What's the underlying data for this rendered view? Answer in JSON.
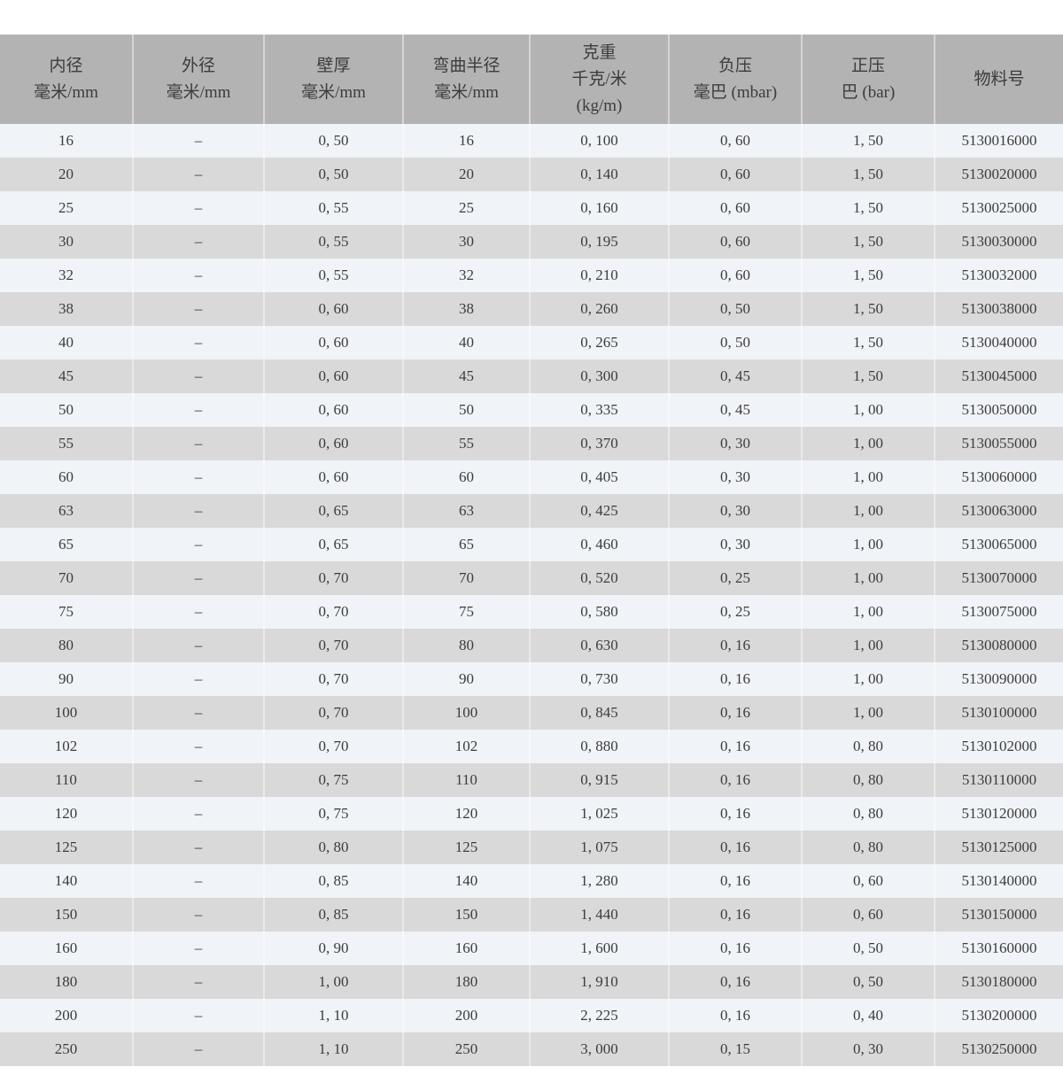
{
  "colors": {
    "page-bg": "#ffffff",
    "header-bg": "#b3b3b3",
    "row-light": "#f0f3f7",
    "row-gray": "#d9d9d9",
    "separator": "rgba(255,255,255,0.45)",
    "text": "#3c3c3c"
  },
  "table": {
    "columns": [
      {
        "id": "inner-diameter",
        "lines": [
          "内径",
          "毫米/mm"
        ]
      },
      {
        "id": "outer-diameter",
        "lines": [
          "外径",
          "毫米/mm"
        ]
      },
      {
        "id": "wall-thickness",
        "lines": [
          "壁厚",
          "毫米/mm"
        ]
      },
      {
        "id": "bend-radius",
        "lines": [
          "弯曲半径",
          "毫米/mm"
        ]
      },
      {
        "id": "weight",
        "lines": [
          "克重",
          "千克/米",
          "(kg/m)"
        ]
      },
      {
        "id": "negative-pressure",
        "lines": [
          "负压",
          "毫巴 (mbar)"
        ]
      },
      {
        "id": "positive-pressure",
        "lines": [
          "正压",
          "巴 (bar)"
        ]
      },
      {
        "id": "material-number",
        "lines": [
          "物料号"
        ]
      }
    ],
    "rows": [
      [
        "16",
        "–",
        "0, 50",
        "16",
        "0, 100",
        "0, 60",
        "1, 50",
        "5130016000"
      ],
      [
        "20",
        "–",
        "0, 50",
        "20",
        "0, 140",
        "0, 60",
        "1, 50",
        "5130020000"
      ],
      [
        "25",
        "–",
        "0, 55",
        "25",
        "0, 160",
        "0, 60",
        "1, 50",
        "5130025000"
      ],
      [
        "30",
        "–",
        "0, 55",
        "30",
        "0, 195",
        "0, 60",
        "1, 50",
        "5130030000"
      ],
      [
        "32",
        "–",
        "0, 55",
        "32",
        "0, 210",
        "0, 60",
        "1, 50",
        "5130032000"
      ],
      [
        "38",
        "–",
        "0, 60",
        "38",
        "0, 260",
        "0, 50",
        "1, 50",
        "5130038000"
      ],
      [
        "40",
        "–",
        "0, 60",
        "40",
        "0, 265",
        "0, 50",
        "1, 50",
        "5130040000"
      ],
      [
        "45",
        "–",
        "0, 60",
        "45",
        "0, 300",
        "0, 45",
        "1, 50",
        "5130045000"
      ],
      [
        "50",
        "–",
        "0, 60",
        "50",
        "0, 335",
        "0, 45",
        "1, 00",
        "5130050000"
      ],
      [
        "55",
        "–",
        "0, 60",
        "55",
        "0, 370",
        "0, 30",
        "1, 00",
        "5130055000"
      ],
      [
        "60",
        "–",
        "0, 60",
        "60",
        "0, 405",
        "0, 30",
        "1, 00",
        "5130060000"
      ],
      [
        "63",
        "–",
        "0, 65",
        "63",
        "0, 425",
        "0, 30",
        "1, 00",
        "5130063000"
      ],
      [
        "65",
        "–",
        "0, 65",
        "65",
        "0, 460",
        "0, 30",
        "1, 00",
        "5130065000"
      ],
      [
        "70",
        "–",
        "0, 70",
        "70",
        "0, 520",
        "0, 25",
        "1, 00",
        "5130070000"
      ],
      [
        "75",
        "–",
        "0, 70",
        "75",
        "0, 580",
        "0, 25",
        "1, 00",
        "5130075000"
      ],
      [
        "80",
        "–",
        "0, 70",
        "80",
        "0, 630",
        "0, 16",
        "1, 00",
        "5130080000"
      ],
      [
        "90",
        "–",
        "0, 70",
        "90",
        "0, 730",
        "0, 16",
        "1, 00",
        "5130090000"
      ],
      [
        "100",
        "–",
        "0, 70",
        "100",
        "0, 845",
        "0, 16",
        "1, 00",
        "5130100000"
      ],
      [
        "102",
        "–",
        "0, 70",
        "102",
        "0, 880",
        "0, 16",
        "0, 80",
        "5130102000"
      ],
      [
        "110",
        "–",
        "0, 75",
        "110",
        "0, 915",
        "0, 16",
        "0, 80",
        "5130110000"
      ],
      [
        "120",
        "–",
        "0, 75",
        "120",
        "1, 025",
        "0, 16",
        "0, 80",
        "5130120000"
      ],
      [
        "125",
        "–",
        "0, 80",
        "125",
        "1, 075",
        "0, 16",
        "0, 80",
        "5130125000"
      ],
      [
        "140",
        "–",
        "0, 85",
        "140",
        "1, 280",
        "0, 16",
        "0, 60",
        "5130140000"
      ],
      [
        "150",
        "–",
        "0, 85",
        "150",
        "1, 440",
        "0, 16",
        "0, 60",
        "5130150000"
      ],
      [
        "160",
        "–",
        "0, 90",
        "160",
        "1, 600",
        "0, 16",
        "0, 50",
        "5130160000"
      ],
      [
        "180",
        "–",
        "1, 00",
        "180",
        "1, 910",
        "0, 16",
        "0, 50",
        "5130180000"
      ],
      [
        "200",
        "–",
        "1, 10",
        "200",
        "2, 225",
        "0, 16",
        "0, 40",
        "5130200000"
      ],
      [
        "250",
        "–",
        "1, 10",
        "250",
        "3, 000",
        "0, 15",
        "0, 30",
        "5130250000"
      ]
    ]
  }
}
